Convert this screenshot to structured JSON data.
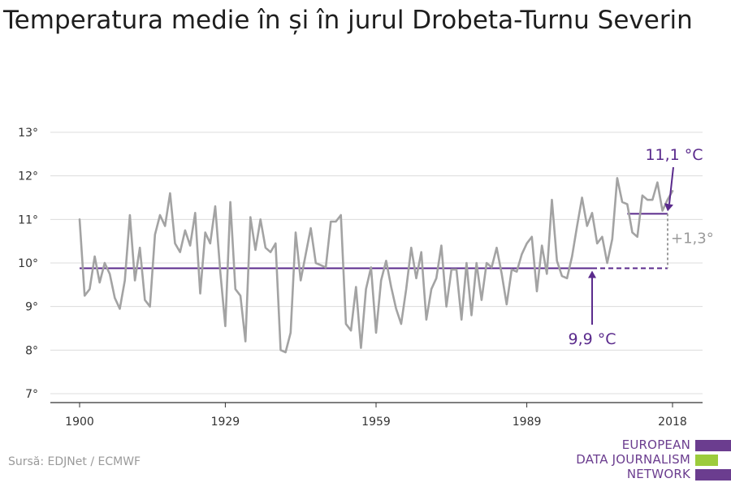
{
  "title": "Temperatura medie în și în jurul Drobeta-Turnu Severin",
  "source": "Sursă: EDJNet / ECMWF",
  "logo": {
    "lines": [
      "EUROPEAN",
      "DATA JOURNALISM",
      "NETWORK"
    ],
    "colors": [
      "#6b3d8f",
      "#9ccc3c",
      "#6b3d8f"
    ]
  },
  "colors": {
    "series": "#a3a3a3",
    "reference": "#5a2a8c",
    "grid": "#dcdcdc",
    "axis": "#333333",
    "delta": "#9a9a9a"
  },
  "chart_data": {
    "type": "line",
    "title": "Temperatura medie în și în jurul Drobeta-Turnu Severin",
    "xlabel": "",
    "ylabel": "",
    "xlim": [
      1900,
      2018
    ],
    "ylim": [
      7,
      13
    ],
    "grid": true,
    "x_ticks": [
      {
        "value": 1900,
        "label": "1900"
      },
      {
        "value": 1929,
        "label": "1929"
      },
      {
        "value": 1959,
        "label": "1959"
      },
      {
        "value": 1989,
        "label": "1989"
      },
      {
        "value": 2018,
        "label": "2018"
      }
    ],
    "y_ticks": [
      {
        "value": 7,
        "label": "7°"
      },
      {
        "value": 8,
        "label": "8°"
      },
      {
        "value": 9,
        "label": "9°"
      },
      {
        "value": 10,
        "label": "10°"
      },
      {
        "value": 11,
        "label": "11°"
      },
      {
        "value": 12,
        "label": "12°"
      },
      {
        "value": 13,
        "label": "13°"
      }
    ],
    "series": [
      {
        "x": [
          1900,
          1901,
          1902,
          1903,
          1904,
          1905,
          1906,
          1907,
          1908,
          1909,
          1910,
          1911,
          1912,
          1913,
          1914,
          1915,
          1916,
          1917,
          1918,
          1919,
          1920,
          1921,
          1922,
          1923,
          1924,
          1925,
          1926,
          1927,
          1928,
          1929,
          1930,
          1931,
          1932,
          1933,
          1934,
          1935,
          1936,
          1937,
          1938,
          1939,
          1940,
          1941,
          1942,
          1943,
          1944,
          1945,
          1946,
          1947,
          1948,
          1949,
          1950,
          1951,
          1952,
          1953,
          1954,
          1955,
          1956,
          1957,
          1958,
          1959,
          1960,
          1961,
          1962,
          1963,
          1964,
          1965,
          1966,
          1967,
          1968,
          1969,
          1970,
          1971,
          1972,
          1973,
          1974,
          1975,
          1976,
          1977,
          1978,
          1979,
          1980,
          1981,
          1982,
          1983,
          1984,
          1985,
          1986,
          1987,
          1988,
          1989,
          1990,
          1991,
          1992,
          1993,
          1994,
          1995,
          1996,
          1997,
          1998,
          1999,
          2000,
          2001,
          2002,
          2003,
          2004,
          2005,
          2006,
          2007,
          2008,
          2009,
          2010,
          2011,
          2012,
          2013,
          2014,
          2015,
          2016,
          2017,
          2018
        ],
        "values": [
          11.0,
          9.25,
          9.4,
          10.15,
          9.55,
          10.0,
          9.75,
          9.2,
          8.95,
          9.6,
          11.1,
          9.6,
          10.35,
          9.15,
          9.0,
          10.65,
          11.1,
          10.85,
          11.6,
          10.45,
          10.25,
          10.75,
          10.4,
          11.15,
          9.3,
          10.7,
          10.45,
          11.3,
          9.8,
          8.55,
          11.4,
          9.4,
          9.25,
          8.2,
          11.05,
          10.3,
          11.0,
          10.35,
          10.25,
          10.45,
          8.0,
          7.95,
          8.4,
          10.7,
          9.6,
          10.2,
          10.8,
          10.0,
          9.95,
          9.9,
          10.95,
          10.95,
          11.1,
          8.6,
          8.45,
          9.45,
          8.05,
          9.4,
          9.9,
          8.4,
          9.6,
          10.05,
          9.45,
          8.95,
          8.6,
          9.4,
          10.35,
          9.65,
          10.25,
          8.7,
          9.4,
          9.65,
          10.4,
          9.0,
          9.85,
          9.85,
          8.7,
          10.0,
          8.8,
          10.0,
          9.15,
          10.0,
          9.9,
          10.35,
          9.75,
          9.05,
          9.85,
          9.8,
          10.2,
          10.45,
          10.6,
          9.35,
          10.4,
          9.75,
          11.45,
          10.05,
          9.7,
          9.65,
          10.15,
          10.85,
          11.5,
          10.85,
          11.15,
          10.45,
          10.6,
          10.0,
          10.55,
          11.95,
          11.4,
          11.35,
          10.7,
          10.6,
          11.55,
          11.45,
          11.45,
          11.85,
          11.2,
          11.45,
          11.65
        ]
      }
    ],
    "reference_lines": [
      {
        "label": "9,9 °C",
        "value": 9.88,
        "from": 1900,
        "to": 2018
      },
      {
        "label": "11,1 °C",
        "value": 11.13,
        "from": 2009,
        "to": 2018
      }
    ],
    "annotations": [
      {
        "label": "+1,3°",
        "kind": "difference"
      }
    ]
  }
}
